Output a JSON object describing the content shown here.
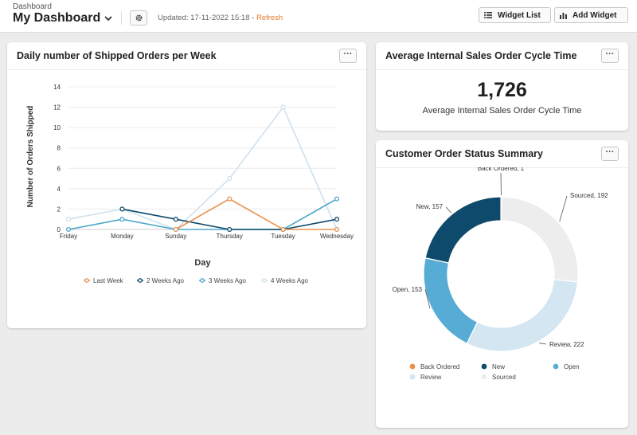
{
  "header": {
    "breadcrumb": "Dashboard",
    "title": "My Dashboard",
    "updated_prefix": "Updated: 17-11-2022 15:18 - ",
    "refresh_label": "Refresh",
    "widget_list_label": "Widget List",
    "add_widget_label": "Add Widget"
  },
  "more_label": "···",
  "colors": {
    "accent": "#e07a2a",
    "last_week": "#e8924f",
    "two_weeks": "#0e4a6b",
    "three_weeks": "#4ba6c8",
    "four_weeks": "#cfe1ed",
    "back_ordered": "#e8924f",
    "new": "#0e4a6b",
    "open": "#57acd6",
    "review": "#d3e6f1",
    "sourced": "#ededed"
  },
  "widgets": {
    "shipped": {
      "title": "Daily number of Shipped Orders per Week"
    },
    "cycle": {
      "title": "Average Internal Sales Order Cycle Time",
      "value": "1,726",
      "label": "Average Internal Sales Order Cycle Time"
    },
    "status": {
      "title": "Customer Order Status Summary"
    }
  },
  "chart_data": [
    {
      "type": "line",
      "title": "Daily number of Shipped Orders per Week",
      "xlabel": "Day",
      "ylabel": "Number of Orders Shipped",
      "ylim": [
        0,
        14
      ],
      "yticks": [
        0,
        2,
        4,
        6,
        8,
        10,
        12,
        14
      ],
      "grid": true,
      "legend": "bottom",
      "categories": [
        "Friday",
        "Monday",
        "Sunday",
        "Thursday",
        "Tuesday",
        "Wednesday"
      ],
      "series": [
        {
          "name": "Last Week",
          "values": [
            null,
            null,
            0,
            3,
            0,
            0
          ]
        },
        {
          "name": "2 Weeks Ago",
          "values": [
            null,
            2,
            1,
            0,
            0,
            1
          ]
        },
        {
          "name": "3 Weeks Ago",
          "values": [
            0,
            1,
            0,
            0,
            0,
            3
          ]
        },
        {
          "name": "4 Weeks Ago",
          "values": [
            1,
            2,
            0,
            5,
            12,
            0
          ]
        }
      ]
    },
    {
      "type": "pie",
      "title": "Customer Order Status Summary",
      "legend": "bottom",
      "slices": [
        {
          "name": "Back Ordered",
          "value": 1,
          "label": "Back Ordered, 1"
        },
        {
          "name": "Sourced",
          "value": 192,
          "label": "Sourced, 192"
        },
        {
          "name": "Review",
          "value": 222,
          "label": "Review, 222"
        },
        {
          "name": "Open",
          "value": 153,
          "label": "Open, 153"
        },
        {
          "name": "New",
          "value": 157,
          "label": "New, 157"
        }
      ]
    }
  ]
}
